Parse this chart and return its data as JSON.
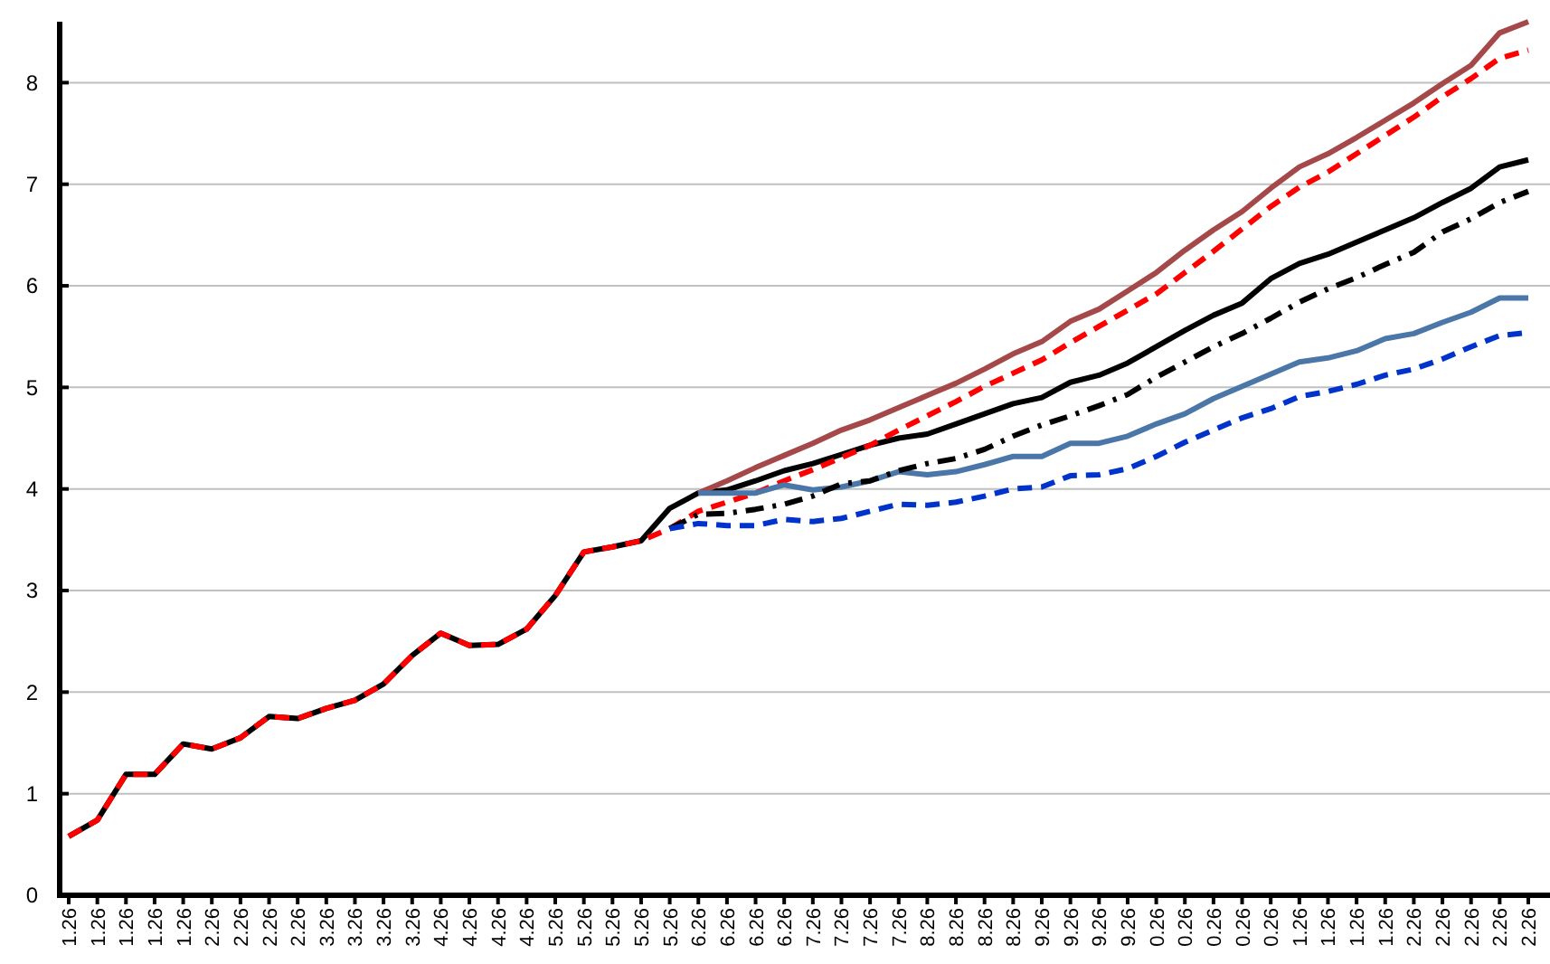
{
  "chart_data": {
    "type": "line",
    "categories": [
      "1.26",
      "1.26",
      "1.26",
      "1.26",
      "1.26",
      "2.26",
      "2.26",
      "2.26",
      "2.26",
      "3.26",
      "3.26",
      "3.26",
      "3.26",
      "4.26",
      "4.26",
      "4.26",
      "4.26",
      "5.26",
      "5.26",
      "5.26",
      "5.26",
      "5.26",
      "6.26",
      "6.26",
      "6.26",
      "6.26",
      "7.26",
      "7.26",
      "7.26",
      "7.26",
      "8.26",
      "8.26",
      "8.26",
      "8.26",
      "9.26",
      "9.26",
      "9.26",
      "9.26",
      "0.26",
      "0.26",
      "0.26",
      "0.26",
      "0.26",
      "1.26",
      "1.26",
      "1.26",
      "1.26",
      "2.26",
      "2.26",
      "2.26",
      "2.26",
      "2.26"
    ],
    "ylim": [
      0,
      8.6
    ],
    "yticks": [
      0,
      1,
      2,
      3,
      4,
      5,
      6,
      7,
      8
    ],
    "grid": "y",
    "marker": "none",
    "series": [
      {
        "color": "#000000",
        "line_style": "solid",
        "values": [
          0.58,
          0.74,
          1.19,
          1.19,
          1.49,
          1.44,
          1.55,
          1.76,
          1.74,
          1.84,
          1.92,
          2.08,
          2.36,
          2.58,
          2.46,
          2.47,
          2.62,
          2.95,
          3.38,
          3.43,
          3.49,
          3.81,
          3.96,
          3.99,
          4.08,
          4.18,
          4.25,
          4.34,
          4.43,
          4.5,
          4.54,
          4.64,
          4.74,
          4.84,
          4.9,
          5.05,
          5.12,
          5.24,
          5.4,
          5.56,
          5.71,
          5.83,
          6.07,
          6.22,
          6.31,
          6.43,
          6.55,
          6.67,
          6.82,
          6.96,
          7.17,
          7.24
        ]
      },
      {
        "color": "#ff0000",
        "line_style": "dashed",
        "values": [
          0.58,
          0.74,
          1.19,
          1.19,
          1.49,
          1.44,
          1.55,
          1.76,
          1.74,
          1.84,
          1.92,
          2.08,
          2.36,
          2.58,
          2.46,
          2.47,
          2.62,
          2.95,
          3.38,
          3.43,
          3.49,
          3.61,
          3.78,
          3.87,
          3.96,
          4.08,
          4.19,
          4.31,
          4.43,
          4.58,
          4.72,
          4.86,
          5.01,
          5.14,
          5.27,
          5.44,
          5.6,
          5.76,
          5.92,
          6.13,
          6.34,
          6.56,
          6.78,
          6.97,
          7.12,
          7.3,
          7.48,
          7.66,
          7.86,
          8.04,
          8.24,
          8.32
        ]
      },
      {
        "color": "#a5484a",
        "line_style": "solid",
        "values": [
          null,
          null,
          null,
          null,
          null,
          null,
          null,
          null,
          null,
          null,
          null,
          null,
          null,
          null,
          null,
          null,
          null,
          null,
          null,
          null,
          null,
          null,
          3.96,
          4.08,
          4.21,
          4.33,
          4.45,
          4.58,
          4.68,
          4.8,
          4.92,
          5.04,
          5.18,
          5.33,
          5.45,
          5.65,
          5.77,
          5.95,
          6.13,
          6.35,
          6.55,
          6.73,
          6.96,
          7.17,
          7.3,
          7.46,
          7.63,
          7.8,
          7.99,
          8.17,
          8.49,
          8.6
        ]
      },
      {
        "color": "#4a76a8",
        "line_style": "solid",
        "values": [
          null,
          null,
          null,
          null,
          null,
          null,
          null,
          null,
          null,
          null,
          null,
          null,
          null,
          null,
          null,
          null,
          null,
          null,
          null,
          null,
          null,
          null,
          3.96,
          3.96,
          3.96,
          4.04,
          3.99,
          4.02,
          4.08,
          4.17,
          4.14,
          4.17,
          4.24,
          4.32,
          4.32,
          4.45,
          4.45,
          4.52,
          4.64,
          4.74,
          4.89,
          5.01,
          5.13,
          5.25,
          5.29,
          5.36,
          5.48,
          5.53,
          5.64,
          5.74,
          5.88,
          5.88
        ]
      },
      {
        "color": "#000000",
        "line_style": "dashdot",
        "values": [
          null,
          null,
          null,
          null,
          null,
          null,
          null,
          null,
          null,
          null,
          null,
          null,
          null,
          null,
          null,
          null,
          null,
          null,
          null,
          null,
          null,
          3.61,
          3.75,
          3.76,
          3.8,
          3.85,
          3.93,
          4.05,
          4.08,
          4.18,
          4.25,
          4.3,
          4.39,
          4.52,
          4.63,
          4.72,
          4.82,
          4.93,
          5.1,
          5.25,
          5.4,
          5.53,
          5.68,
          5.84,
          5.97,
          6.08,
          6.21,
          6.33,
          6.53,
          6.66,
          6.82,
          6.93
        ]
      },
      {
        "color": "#0033cc",
        "line_style": "dashed",
        "values": [
          null,
          null,
          null,
          null,
          null,
          null,
          null,
          null,
          null,
          null,
          null,
          null,
          null,
          null,
          null,
          null,
          null,
          null,
          null,
          null,
          null,
          3.61,
          3.66,
          3.64,
          3.64,
          3.7,
          3.68,
          3.71,
          3.78,
          3.85,
          3.84,
          3.87,
          3.93,
          4.0,
          4.02,
          4.13,
          4.14,
          4.2,
          4.32,
          4.46,
          4.58,
          4.7,
          4.79,
          4.91,
          4.96,
          5.03,
          5.12,
          5.18,
          5.28,
          5.4,
          5.51,
          5.54
        ]
      }
    ]
  }
}
